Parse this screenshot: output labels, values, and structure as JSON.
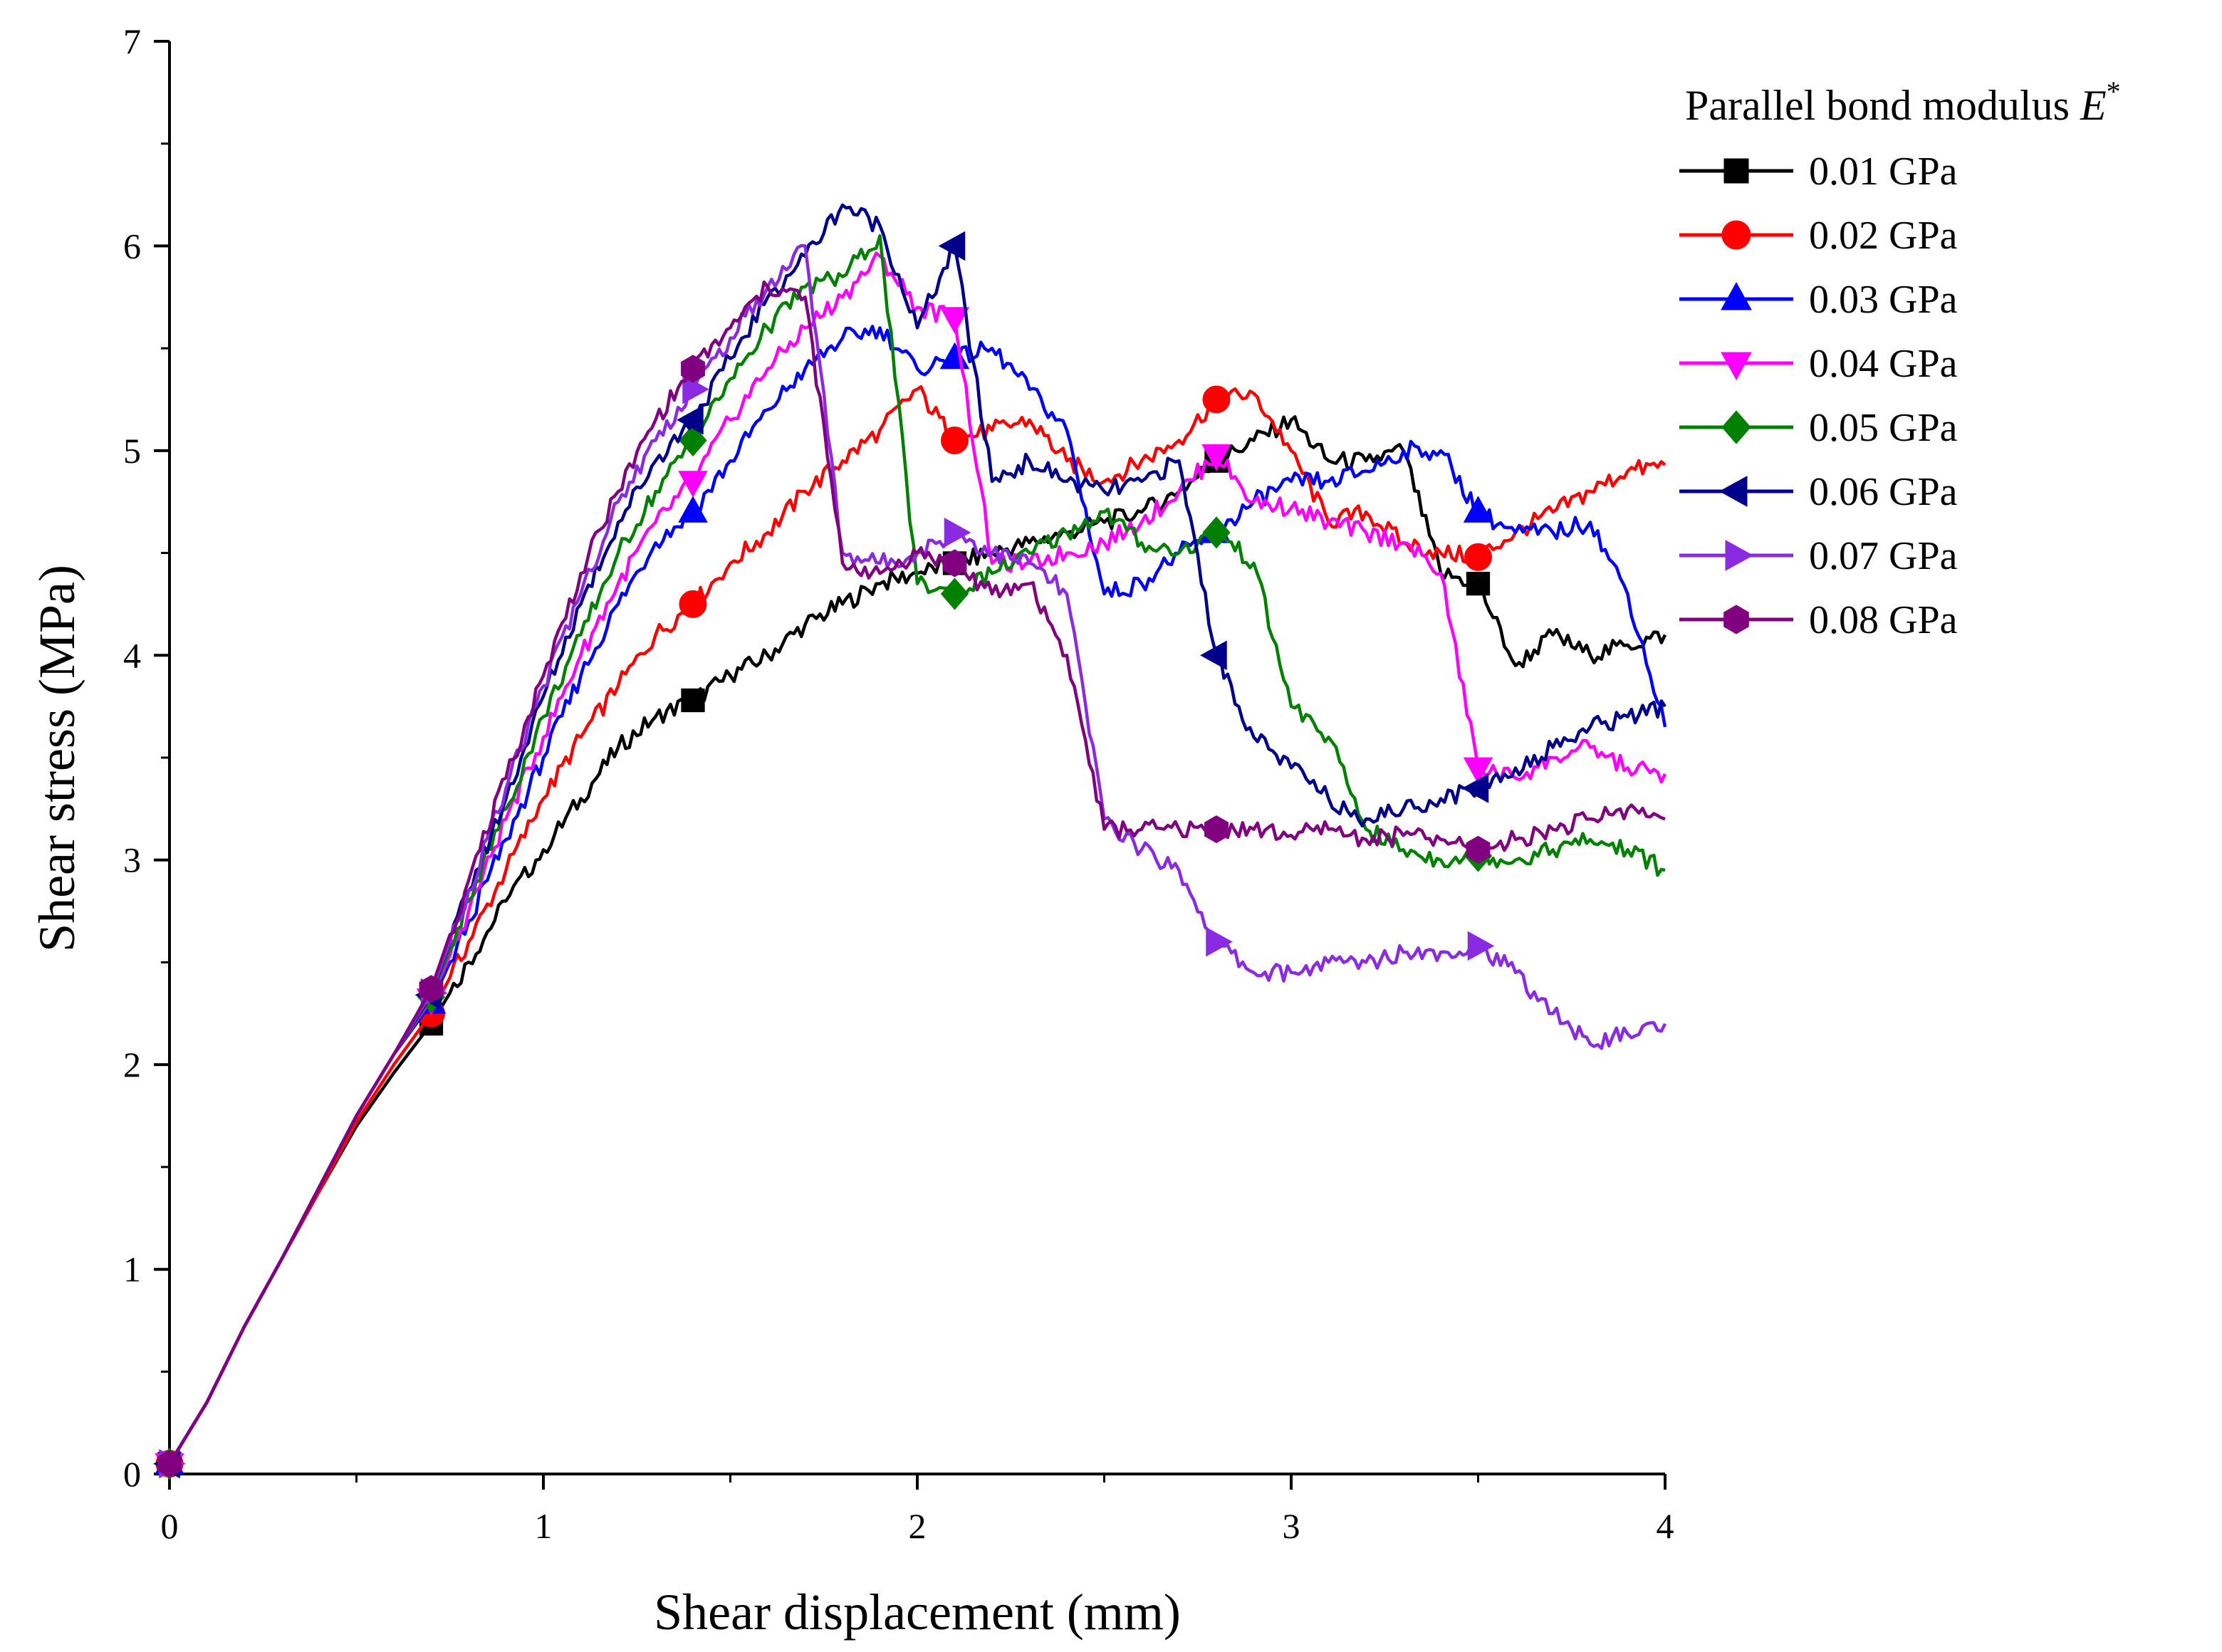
{
  "chart_data": {
    "type": "line",
    "title": "",
    "xlabel": "Shear displacement (mm)",
    "ylabel": "Shear stress (MPa)",
    "xlim": [
      0,
      4
    ],
    "ylim": [
      0,
      7
    ],
    "xticks": [
      0,
      1,
      2,
      3,
      4
    ],
    "yticks": [
      0,
      1,
      2,
      3,
      4,
      5,
      6,
      7
    ],
    "grid": false,
    "legend": {
      "title": "Parallel bond modulus",
      "title_symbol": "E",
      "title_superscript": "*",
      "position": "top-right-outside"
    },
    "marker_x": [
      0.0,
      0.7,
      1.4,
      2.1,
      2.8,
      3.5
    ],
    "series": [
      {
        "name": "0.01 GPa",
        "color": "#000000",
        "marker": "square",
        "x": [
          0,
          0.1,
          0.2,
          0.3,
          0.4,
          0.5,
          0.6,
          0.7,
          0.8,
          0.9,
          1.0,
          1.1,
          1.2,
          1.3,
          1.4,
          1.5,
          1.6,
          1.7,
          1.8,
          1.9,
          2.0,
          2.1,
          2.2,
          2.3,
          2.4,
          2.5,
          2.6,
          2.7,
          2.8,
          2.9,
          3.0,
          3.1,
          3.2,
          3.3,
          3.4,
          3.5,
          3.6,
          3.7,
          3.8,
          3.9,
          4.0
        ],
        "y": [
          0.05,
          0.35,
          0.72,
          1.05,
          1.38,
          1.7,
          1.96,
          2.2,
          2.5,
          2.8,
          3.05,
          3.3,
          3.55,
          3.7,
          3.78,
          3.9,
          4.0,
          4.15,
          4.25,
          4.35,
          4.4,
          4.45,
          4.5,
          4.55,
          4.6,
          4.65,
          4.7,
          4.8,
          4.95,
          5.05,
          5.15,
          4.95,
          4.95,
          5.0,
          4.4,
          4.35,
          3.95,
          4.1,
          4.0,
          4.05,
          4.1
        ]
      },
      {
        "name": "0.02 GPa",
        "color": "#ff0000",
        "marker": "circle",
        "x": [
          0,
          0.1,
          0.2,
          0.3,
          0.4,
          0.5,
          0.6,
          0.7,
          0.8,
          0.9,
          1.0,
          1.1,
          1.2,
          1.3,
          1.4,
          1.5,
          1.6,
          1.7,
          1.8,
          1.9,
          2.0,
          2.1,
          2.2,
          2.3,
          2.4,
          2.5,
          2.6,
          2.7,
          2.8,
          2.9,
          3.0,
          3.1,
          3.2,
          3.3,
          3.4,
          3.5,
          3.6,
          3.7,
          3.8,
          3.9,
          4.0
        ],
        "y": [
          0.05,
          0.35,
          0.72,
          1.05,
          1.38,
          1.72,
          2.0,
          2.25,
          2.6,
          2.95,
          3.3,
          3.6,
          3.85,
          4.1,
          4.25,
          4.45,
          4.6,
          4.8,
          4.95,
          5.1,
          5.3,
          5.05,
          5.1,
          5.15,
          4.95,
          4.85,
          4.95,
          5.05,
          5.25,
          5.28,
          5.0,
          4.65,
          4.7,
          4.55,
          4.5,
          4.48,
          4.6,
          4.7,
          4.8,
          4.9,
          4.93
        ]
      },
      {
        "name": "0.03 GPa",
        "color": "#0000ff",
        "marker": "triangle-up",
        "x": [
          0,
          0.1,
          0.2,
          0.3,
          0.4,
          0.5,
          0.6,
          0.7,
          0.8,
          0.9,
          1.0,
          1.1,
          1.2,
          1.3,
          1.4,
          1.5,
          1.6,
          1.7,
          1.8,
          1.9,
          2.0,
          2.1,
          2.2,
          2.3,
          2.4,
          2.5,
          2.6,
          2.7,
          2.8,
          2.9,
          3.0,
          3.1,
          3.2,
          3.3,
          3.4,
          3.5,
          3.6,
          3.7,
          3.8,
          3.9,
          4.0
        ],
        "y": [
          0.05,
          0.35,
          0.72,
          1.05,
          1.4,
          1.75,
          2.05,
          2.3,
          2.7,
          3.1,
          3.5,
          3.9,
          4.25,
          4.55,
          4.7,
          4.95,
          5.2,
          5.4,
          5.55,
          5.6,
          5.4,
          5.45,
          5.5,
          5.3,
          5.1,
          4.3,
          4.35,
          4.5,
          4.6,
          4.75,
          4.85,
          4.85,
          4.9,
          5.0,
          5.0,
          4.7,
          4.6,
          4.6,
          4.65,
          4.3,
          3.65
        ]
      },
      {
        "name": "0.04 GPa",
        "color": "#ff00ff",
        "marker": "triangle-down",
        "x": [
          0,
          0.1,
          0.2,
          0.3,
          0.4,
          0.5,
          0.6,
          0.7,
          0.8,
          0.9,
          1.0,
          1.1,
          1.2,
          1.3,
          1.4,
          1.5,
          1.6,
          1.7,
          1.8,
          1.9,
          2.0,
          2.1,
          2.2,
          2.3,
          2.4,
          2.5,
          2.6,
          2.7,
          2.8,
          2.9,
          3.0,
          3.1,
          3.2,
          3.3,
          3.4,
          3.5,
          3.6,
          3.7,
          3.8,
          3.9,
          4.0
        ],
        "y": [
          0.05,
          0.35,
          0.72,
          1.05,
          1.4,
          1.75,
          2.05,
          2.32,
          2.75,
          3.2,
          3.6,
          4.0,
          4.35,
          4.65,
          4.85,
          5.15,
          5.4,
          5.6,
          5.75,
          5.95,
          5.7,
          5.65,
          4.45,
          4.45,
          4.5,
          4.55,
          4.65,
          4.8,
          4.98,
          4.75,
          4.72,
          4.65,
          4.6,
          4.55,
          4.4,
          3.45,
          3.4,
          3.5,
          3.55,
          3.45,
          3.42
        ]
      },
      {
        "name": "0.05 GPa",
        "color": "#008000",
        "marker": "diamond",
        "x": [
          0,
          0.1,
          0.2,
          0.3,
          0.4,
          0.5,
          0.6,
          0.7,
          0.8,
          0.9,
          1.0,
          1.1,
          1.2,
          1.3,
          1.4,
          1.5,
          1.6,
          1.7,
          1.8,
          1.9,
          2.0,
          2.1,
          2.2,
          2.3,
          2.4,
          2.5,
          2.6,
          2.7,
          2.8,
          2.9,
          3.0,
          3.1,
          3.2,
          3.3,
          3.4,
          3.5,
          3.6,
          3.7,
          3.8,
          3.9,
          4.0
        ],
        "y": [
          0.05,
          0.35,
          0.72,
          1.05,
          1.4,
          1.75,
          2.05,
          2.33,
          2.8,
          3.25,
          3.7,
          4.1,
          4.5,
          4.8,
          5.05,
          5.35,
          5.6,
          5.8,
          5.85,
          6.05,
          4.35,
          4.3,
          4.4,
          4.5,
          4.6,
          4.7,
          4.55,
          4.5,
          4.6,
          4.45,
          3.75,
          3.6,
          3.15,
          3.05,
          3.0,
          3.02,
          3.0,
          3.05,
          3.1,
          3.05,
          2.95
        ]
      },
      {
        "name": "0.06 GPa",
        "color": "#00008b",
        "marker": "triangle-left",
        "x": [
          0,
          0.1,
          0.2,
          0.3,
          0.4,
          0.5,
          0.6,
          0.7,
          0.8,
          0.9,
          1.0,
          1.1,
          1.2,
          1.3,
          1.4,
          1.5,
          1.6,
          1.7,
          1.8,
          1.9,
          2.0,
          2.1,
          2.2,
          2.3,
          2.4,
          2.5,
          2.6,
          2.7,
          2.8,
          2.9,
          3.0,
          3.1,
          3.2,
          3.3,
          3.4,
          3.5,
          3.6,
          3.7,
          3.8,
          3.9,
          4.0
        ],
        "y": [
          0.05,
          0.35,
          0.72,
          1.05,
          1.4,
          1.75,
          2.05,
          2.34,
          2.85,
          3.3,
          3.8,
          4.25,
          4.65,
          4.95,
          5.15,
          5.45,
          5.75,
          5.95,
          6.2,
          6.1,
          5.6,
          6.0,
          4.85,
          4.95,
          4.85,
          4.8,
          4.85,
          4.95,
          4.0,
          3.6,
          3.45,
          3.3,
          3.2,
          3.25,
          3.3,
          3.35,
          3.45,
          3.55,
          3.65,
          3.7,
          3.75
        ]
      },
      {
        "name": "0.07 GPa",
        "color": "#8a2be2",
        "marker": "triangle-right",
        "x": [
          0,
          0.1,
          0.2,
          0.3,
          0.4,
          0.5,
          0.6,
          0.7,
          0.8,
          0.9,
          1.0,
          1.1,
          1.2,
          1.3,
          1.4,
          1.5,
          1.6,
          1.7,
          1.8,
          1.9,
          2.0,
          2.1,
          2.2,
          2.3,
          2.4,
          2.5,
          2.6,
          2.7,
          2.8,
          2.9,
          3.0,
          3.1,
          3.2,
          3.3,
          3.4,
          3.5,
          3.6,
          3.7,
          3.8,
          3.9,
          4.0
        ],
        "y": [
          0.05,
          0.35,
          0.72,
          1.05,
          1.4,
          1.75,
          2.05,
          2.35,
          2.85,
          3.35,
          3.85,
          4.3,
          4.75,
          5.05,
          5.3,
          5.55,
          5.8,
          6.0,
          4.5,
          4.45,
          4.5,
          4.6,
          4.5,
          4.45,
          4.3,
          3.2,
          3.05,
          2.95,
          2.6,
          2.45,
          2.45,
          2.5,
          2.5,
          2.55,
          2.55,
          2.58,
          2.45,
          2.25,
          2.1,
          2.15,
          2.2
        ]
      },
      {
        "name": "0.08 GPa",
        "color": "#800080",
        "marker": "hexagon",
        "x": [
          0,
          0.1,
          0.2,
          0.3,
          0.4,
          0.5,
          0.6,
          0.7,
          0.8,
          0.9,
          1.0,
          1.1,
          1.2,
          1.3,
          1.4,
          1.5,
          1.6,
          1.7,
          1.8,
          1.9,
          2.0,
          2.1,
          2.2,
          2.3,
          2.4,
          2.5,
          2.6,
          2.7,
          2.8,
          2.9,
          3.0,
          3.1,
          3.2,
          3.3,
          3.4,
          3.5,
          3.6,
          3.7,
          3.8,
          3.9,
          4.0
        ],
        "y": [
          0.05,
          0.35,
          0.72,
          1.05,
          1.4,
          1.75,
          2.05,
          2.37,
          2.9,
          3.4,
          3.9,
          4.4,
          4.8,
          5.15,
          5.4,
          5.6,
          5.8,
          5.75,
          4.45,
          4.4,
          4.5,
          4.45,
          4.3,
          4.35,
          4.0,
          3.15,
          3.15,
          3.15,
          3.15,
          3.15,
          3.12,
          3.15,
          3.1,
          3.12,
          3.1,
          3.05,
          3.1,
          3.15,
          3.2,
          3.25,
          3.2
        ]
      }
    ]
  }
}
